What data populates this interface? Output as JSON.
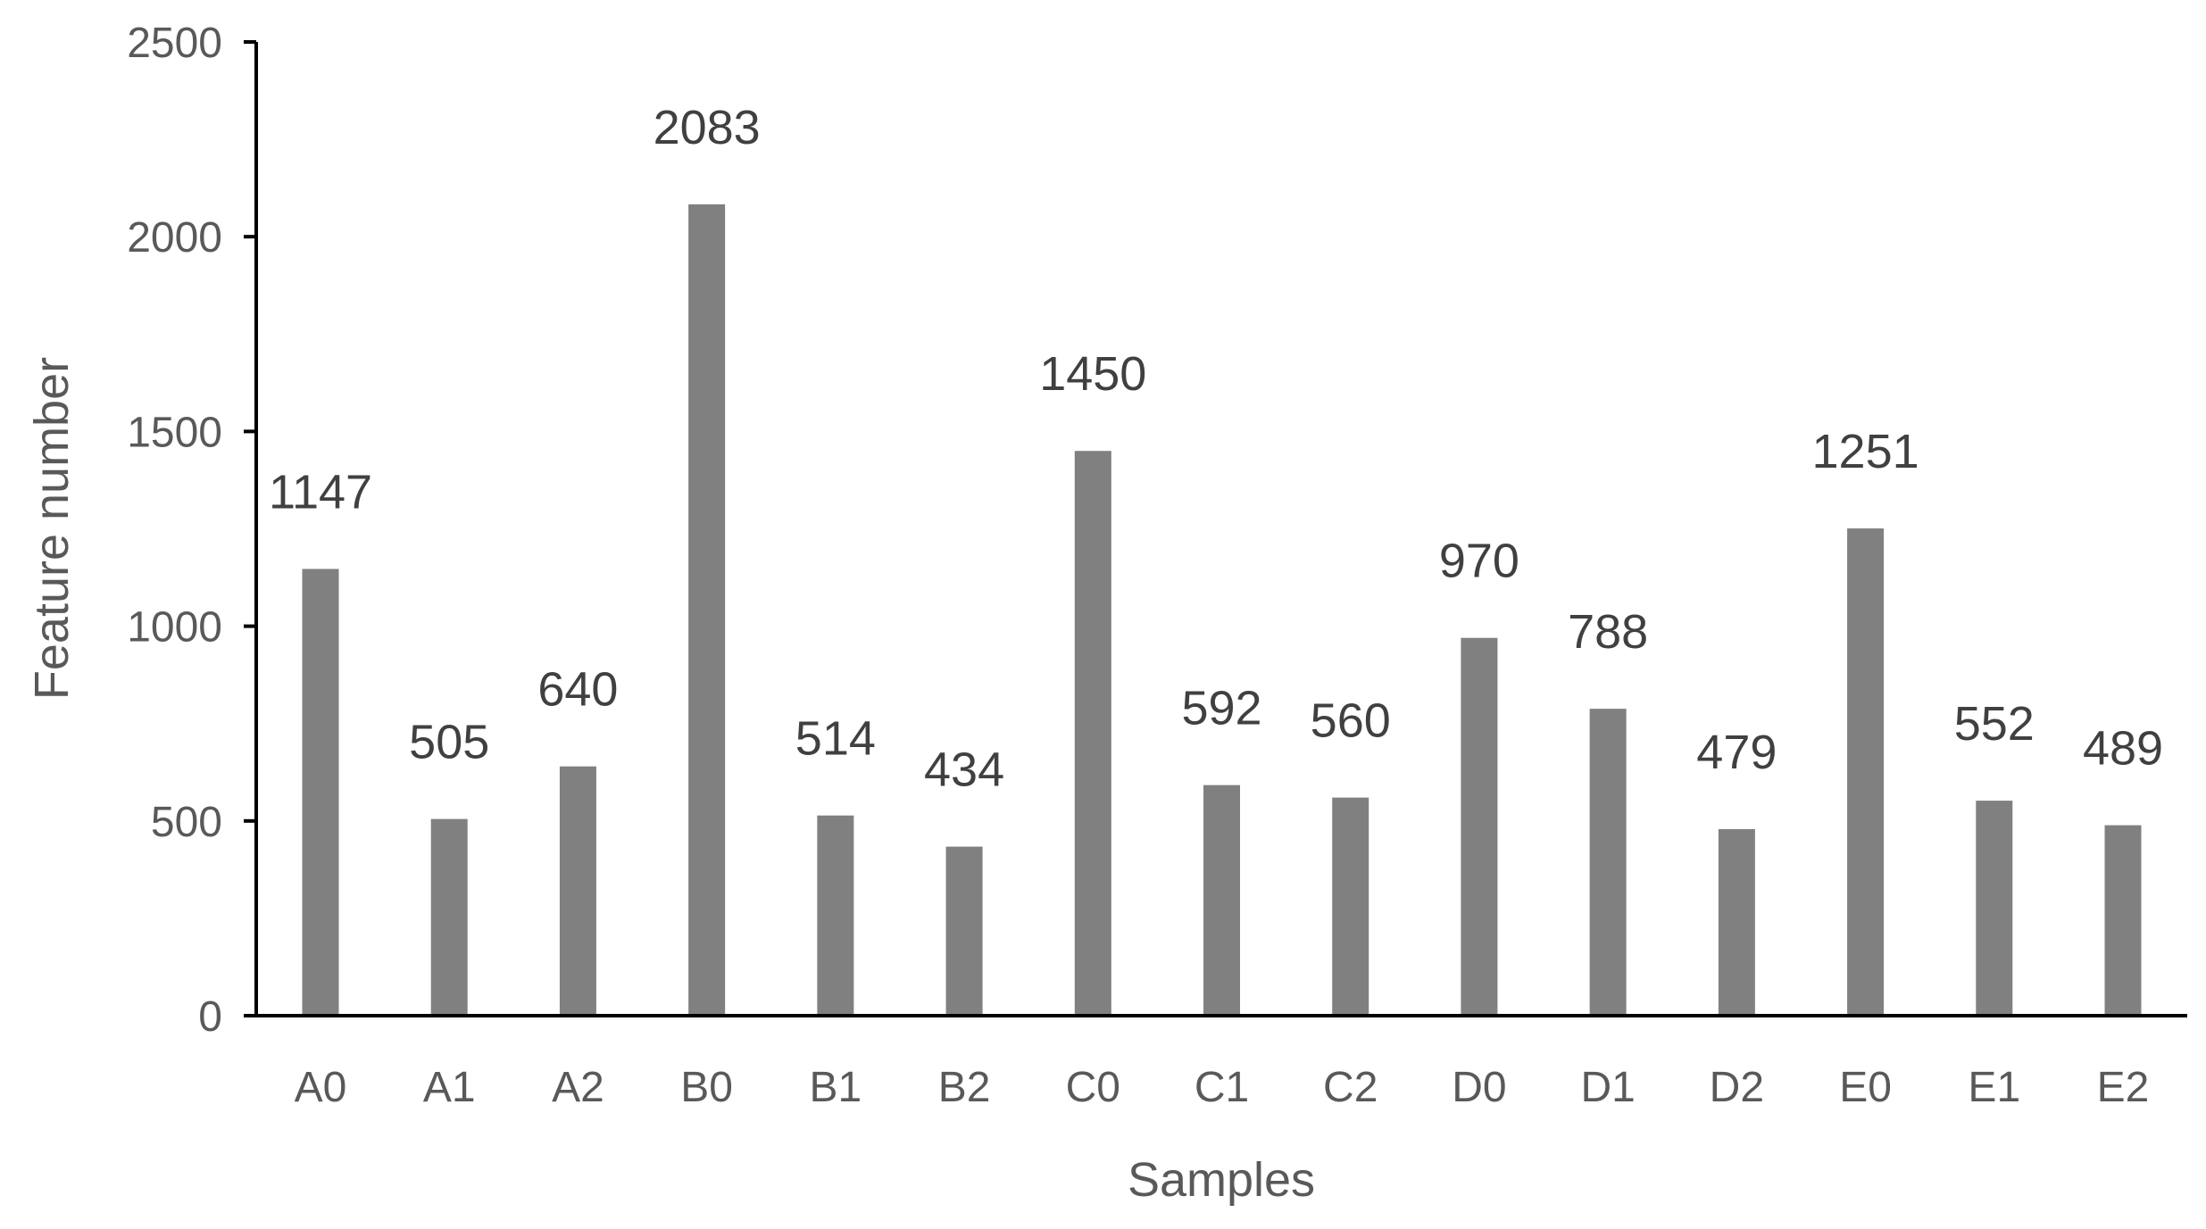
{
  "chart_data": {
    "type": "bar",
    "title": "",
    "xlabel": "Samples",
    "ylabel": "Feature number",
    "categories": [
      "A0",
      "A1",
      "A2",
      "B0",
      "B1",
      "B2",
      "C0",
      "C1",
      "C2",
      "D0",
      "D1",
      "D2",
      "E0",
      "E1",
      "E2"
    ],
    "values": [
      1147,
      505,
      640,
      2083,
      514,
      434,
      1450,
      592,
      560,
      970,
      788,
      479,
      1251,
      552,
      489
    ],
    "ylim": [
      0,
      2500
    ],
    "yticks": [
      0,
      500,
      1000,
      1500,
      2000,
      2500
    ],
    "grid": false,
    "data_labels": true,
    "bar_color": "#808080",
    "axis_color": "#000000"
  }
}
